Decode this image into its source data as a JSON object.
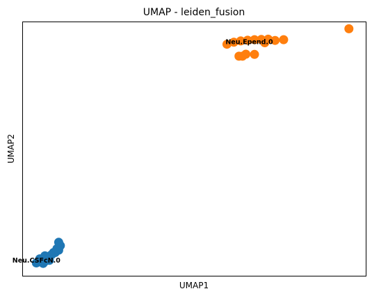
{
  "chart_data": {
    "type": "scatter",
    "title": "UMAP - leiden_fusion",
    "xlabel": "UMAP1",
    "ylabel": "UMAP2",
    "xlim": [
      0,
      100
    ],
    "ylim": [
      0,
      100
    ],
    "ticks": false,
    "grid": false,
    "legend": "none",
    "series": [
      {
        "name": "Neu.CSFcN.0",
        "color": "#1f77b4",
        "label_at": [
          4,
          6
        ],
        "x": [
          4.0,
          5.5,
          6.5,
          7.5,
          8.5,
          9.5,
          10.5,
          6.0,
          7.0,
          8.0,
          9.0,
          10.0,
          11.0,
          10.5,
          5.0,
          6.5,
          7.8
        ],
        "y": [
          5.2,
          5.5,
          5.8,
          7.6,
          8.5,
          9.3,
          10.2,
          5.0,
          7.0,
          8.0,
          9.3,
          10.8,
          12.0,
          13.3,
          6.8,
          8.0,
          6.2
        ]
      },
      {
        "name": "Neu.Epend.0",
        "color": "#ff7f0e",
        "label_at": [
          66,
          92
        ],
        "x": [
          59.5,
          61.5,
          63.5,
          65.5,
          67.5,
          69.5,
          71.5,
          63.0,
          64.0,
          65.0,
          67.5,
          70.5,
          73.5,
          76.0,
          95.0
        ],
        "y": [
          91.2,
          92.0,
          92.5,
          92.8,
          93.0,
          93.1,
          93.2,
          86.5,
          86.5,
          87.3,
          87.2,
          91.8,
          92.7,
          93.0,
          97.3
        ]
      }
    ]
  }
}
